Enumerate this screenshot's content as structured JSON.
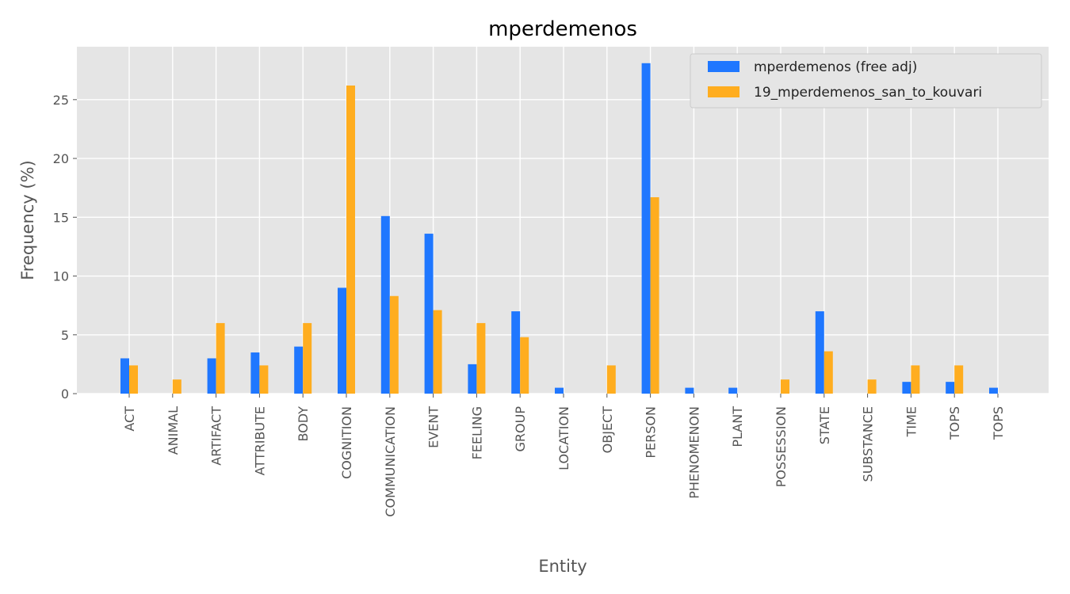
{
  "chart_data": {
    "type": "bar",
    "title": "mperdemenos",
    "xlabel": "Entity",
    "ylabel": "Frequency (%)",
    "ylim": [
      0,
      29.5
    ],
    "yticks": [
      0,
      5,
      10,
      15,
      20,
      25
    ],
    "grid": true,
    "legend_position": "top-right",
    "categories": [
      "ACT",
      "ANIMAL",
      "ARTIFACT",
      "ATTRIBUTE",
      "BODY",
      "COGNITION",
      "COMMUNICATION",
      "EVENT",
      "FEELING",
      "GROUP",
      "LOCATION",
      "OBJECT",
      "PERSON",
      "PHENOMENON",
      "PLANT",
      "POSSESSION",
      "STATE",
      "SUBSTANCE",
      "TIME",
      "TOPS",
      "TOPS"
    ],
    "series": [
      {
        "name": "mperdemenos (free adj)",
        "color": "#1f77ff",
        "values": [
          3.0,
          0,
          3.0,
          3.5,
          4.0,
          9.0,
          15.1,
          13.6,
          2.5,
          7.0,
          0.5,
          0,
          28.1,
          0.5,
          0.5,
          0,
          7.0,
          0,
          1.0,
          1.0,
          0.5
        ]
      },
      {
        "name": "19_mperdemenos_san_to_kouvari",
        "color": "#ffad1f",
        "values": [
          2.4,
          1.2,
          6.0,
          2.4,
          6.0,
          26.2,
          8.3,
          7.1,
          6.0,
          4.8,
          0,
          2.4,
          16.7,
          0,
          0,
          1.2,
          3.6,
          1.2,
          2.4,
          2.4,
          0
        ]
      }
    ],
    "colors": {
      "plot_background": "#e5e5e5",
      "grid": "#ffffff",
      "text": "#555555"
    }
  }
}
